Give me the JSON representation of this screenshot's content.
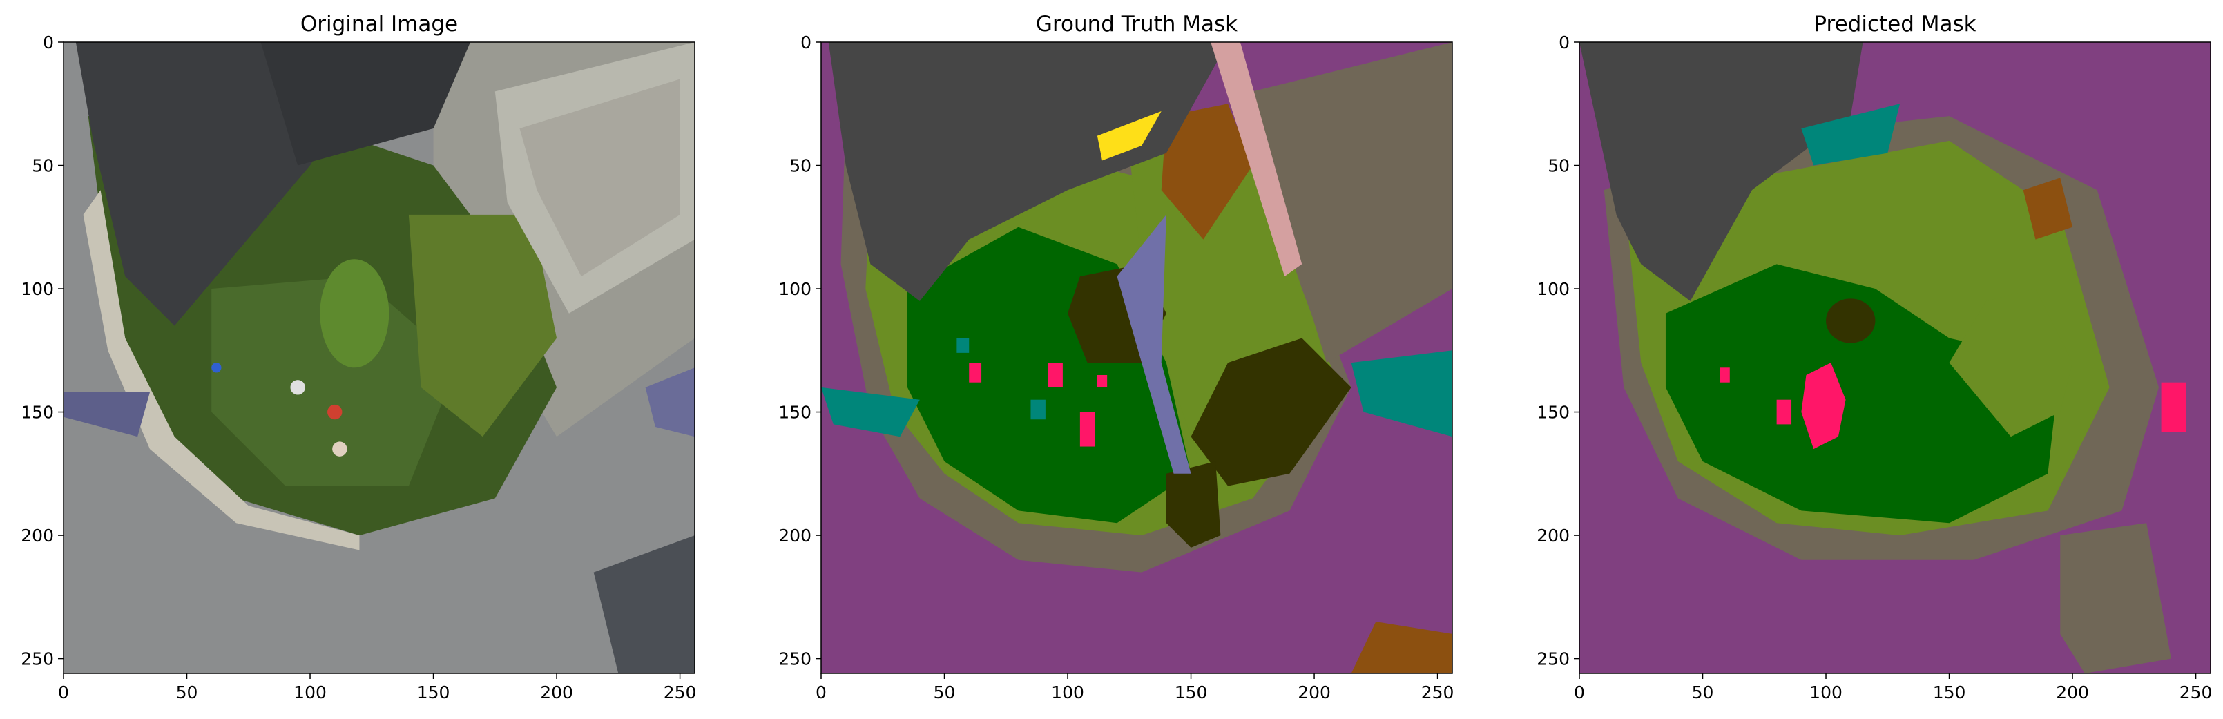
{
  "chart_data": [
    {
      "type": "image",
      "title": "Original Image",
      "x_ticks": [
        0,
        50,
        100,
        150,
        200,
        250
      ],
      "y_ticks": [
        0,
        50,
        100,
        150,
        200,
        250
      ],
      "xlim": [
        0,
        256
      ],
      "ylim": [
        256,
        0
      ],
      "content": "aerial photo: house roofs, garden lawn, curved road"
    },
    {
      "type": "image",
      "title": "Ground Truth Mask",
      "x_ticks": [
        0,
        50,
        100,
        150,
        200,
        250
      ],
      "y_ticks": [
        0,
        50,
        100,
        150,
        200,
        250
      ],
      "xlim": [
        0,
        256
      ],
      "ylim": [
        256,
        0
      ],
      "content": "segmentation mask"
    },
    {
      "type": "image",
      "title": "Predicted Mask",
      "x_ticks": [
        0,
        50,
        100,
        150,
        200,
        250
      ],
      "y_ticks": [
        0,
        50,
        100,
        150,
        200,
        250
      ],
      "xlim": [
        0,
        256
      ],
      "ylim": [
        256,
        0
      ],
      "content": "segmentation mask"
    }
  ],
  "palette": {
    "background": "#804080",
    "roof": "#464646",
    "lawn": "#006600",
    "vegetation": "#6b8e23",
    "tree": "#333300",
    "bare_soil": "#706757",
    "dirt": "#8c5010",
    "water_or_vehicle": "#00867a",
    "person": "#ff1668",
    "pavement_edge": "#7070a8",
    "yellow_object": "#fedf18",
    "pink_strip": "#d4a0a0",
    "photo_road": "#8b8d8e",
    "photo_grass": "#3d5a22",
    "photo_roof": "#3b3d40",
    "photo_concrete": "#b8b8ae"
  }
}
